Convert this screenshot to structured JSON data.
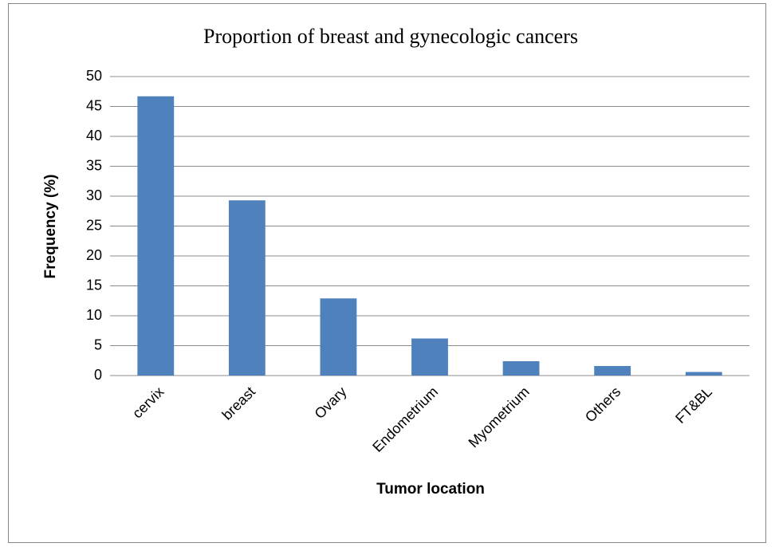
{
  "chart_data": {
    "type": "bar",
    "title": "Proportion of breast and gynecologic cancers",
    "x_label": "Tumor location",
    "y_label": "Frequency (%)",
    "categories": [
      "cervix",
      "breast",
      "Ovary",
      "Endometrium",
      "Myometrium",
      "Others",
      "FT&BL"
    ],
    "values": [
      46.7,
      29.3,
      12.9,
      6.2,
      2.4,
      1.6,
      0.6
    ],
    "color": "#4f81bd",
    "ylim": [
      0,
      50
    ],
    "yticks": [
      0,
      5,
      10,
      15,
      20,
      25,
      30,
      35,
      40,
      45,
      50
    ],
    "grid": true
  }
}
